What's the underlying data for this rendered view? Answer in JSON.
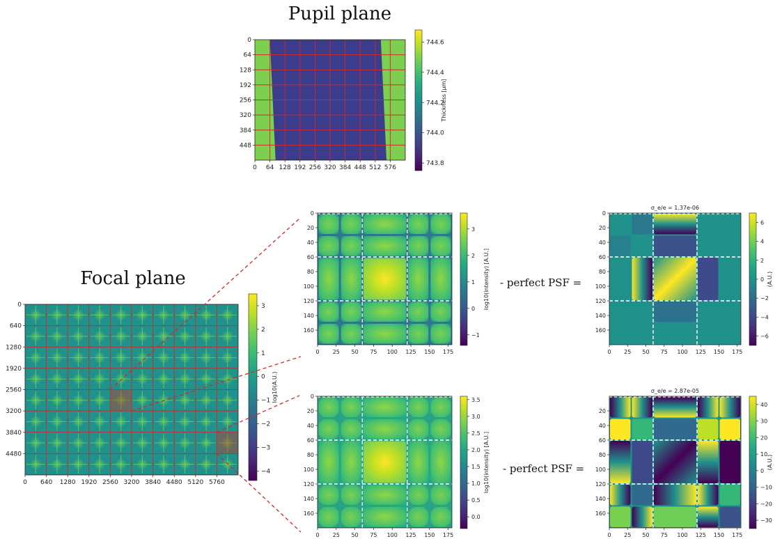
{
  "titles": {
    "pupil": "Pupil plane",
    "focal": "Focal plane"
  },
  "equation_label": "- perfect PSF =",
  "colors": {
    "viridis": [
      "#440154",
      "#482475",
      "#414487",
      "#355f8d",
      "#2a788e",
      "#21918c",
      "#22a884",
      "#44bf70",
      "#7ad151",
      "#bddf26",
      "#fde725"
    ],
    "grid_red": "#d62728",
    "dashed_white": "#ffffff",
    "pupil_inside": "#3b3c8c",
    "pupil_outside": "#7ccf4f"
  },
  "chart_data": [
    {
      "id": "pupil",
      "type": "heatmap",
      "title": "Pupil plane",
      "xticks": [
        "0",
        "64",
        "128",
        "192",
        "256",
        "320",
        "384",
        "448",
        "512",
        "576"
      ],
      "yticks": [
        "0",
        "64",
        "128",
        "192",
        "256",
        "320",
        "384",
        "448"
      ],
      "xlim": [
        0,
        640
      ],
      "ylim": [
        512,
        0
      ],
      "colorbar": {
        "label": "Thickness [μm]",
        "ticks": [
          "743.8",
          "744.0",
          "744.2",
          "744.4",
          "744.6"
        ],
        "range": [
          743.75,
          744.68
        ]
      },
      "grid": true
    },
    {
      "id": "focal",
      "type": "heatmap",
      "title": "Focal plane",
      "xticks": [
        "0",
        "640",
        "1280",
        "1920",
        "2560",
        "3200",
        "3840",
        "4480",
        "5120",
        "5760"
      ],
      "yticks": [
        "0",
        "640",
        "1280",
        "1920",
        "2560",
        "3200",
        "3840",
        "4480"
      ],
      "xlim": [
        0,
        6400
      ],
      "ylim": [
        5120,
        0
      ],
      "colorbar": {
        "label": "log10(A.U.)",
        "ticks": [
          "3",
          "2",
          "1",
          "0",
          "−1",
          "−2",
          "−3",
          "−4"
        ],
        "range": [
          -4.4,
          3.5
        ]
      },
      "zoom_boxes": [
        {
          "x0": 2560,
          "x1": 3200,
          "y0": 2560,
          "y1": 3200
        },
        {
          "x0": 5760,
          "x1": 6400,
          "y0": 3840,
          "y1": 4480
        }
      ],
      "grid": true
    },
    {
      "id": "zoom_top",
      "type": "heatmap",
      "xticks": [
        "0",
        "25",
        "50",
        "75",
        "100",
        "125",
        "150",
        "175"
      ],
      "yticks": [
        "0",
        "20",
        "40",
        "60",
        "80",
        "100",
        "120",
        "140",
        "160"
      ],
      "xlim": [
        0,
        180
      ],
      "ylim": [
        180,
        0
      ],
      "dashed_lines": [
        60,
        120
      ],
      "colorbar": {
        "label": "log10(intensity) [A.U.]",
        "ticks": [
          "3",
          "2",
          "1",
          "0",
          "−1"
        ],
        "range": [
          -1.4,
          3.6
        ]
      }
    },
    {
      "id": "diff_top",
      "type": "heatmap",
      "title": "σ_e/e = 1.37e-06",
      "xticks": [
        "0",
        "25",
        "50",
        "75",
        "100",
        "125",
        "150",
        "175"
      ],
      "yticks": [
        "0",
        "20",
        "40",
        "60",
        "80",
        "100",
        "120",
        "140",
        "160"
      ],
      "xlim": [
        0,
        180
      ],
      "ylim": [
        180,
        0
      ],
      "dashed_lines": [
        60,
        120
      ],
      "colorbar": {
        "label": "(A.U.)",
        "ticks": [
          "6",
          "4",
          "2",
          "0",
          "−2",
          "−4",
          "−6"
        ],
        "range": [
          -7,
          7
        ]
      }
    },
    {
      "id": "zoom_bottom",
      "type": "heatmap",
      "xticks": [
        "0",
        "25",
        "50",
        "75",
        "100",
        "125",
        "150",
        "175"
      ],
      "yticks": [
        "0",
        "20",
        "40",
        "60",
        "80",
        "100",
        "120",
        "140",
        "160"
      ],
      "xlim": [
        0,
        180
      ],
      "ylim": [
        180,
        0
      ],
      "dashed_lines": [
        60,
        120
      ],
      "colorbar": {
        "label": "log10(intensity) [A.U.]",
        "ticks": [
          "3.5",
          "3.0",
          "2.5",
          "2.0",
          "1.5",
          "1.0",
          "0.5",
          "0.0"
        ],
        "range": [
          -0.35,
          3.6
        ]
      }
    },
    {
      "id": "diff_bottom",
      "type": "heatmap",
      "title": "σ_e/e = 2.87e-05",
      "xticks": [
        "0",
        "25",
        "50",
        "75",
        "100",
        "125",
        "150",
        "175"
      ],
      "yticks": [
        "20",
        "40",
        "60",
        "80",
        "100",
        "120",
        "140",
        "160"
      ],
      "xlim": [
        0,
        180
      ],
      "ylim": [
        180,
        0
      ],
      "dashed_lines": [
        60,
        120
      ],
      "colorbar": {
        "label": "(A.U.)",
        "ticks": [
          "40",
          "30",
          "20",
          "10",
          "0",
          "−10",
          "−20",
          "−30"
        ],
        "range": [
          -35,
          45
        ]
      }
    }
  ]
}
